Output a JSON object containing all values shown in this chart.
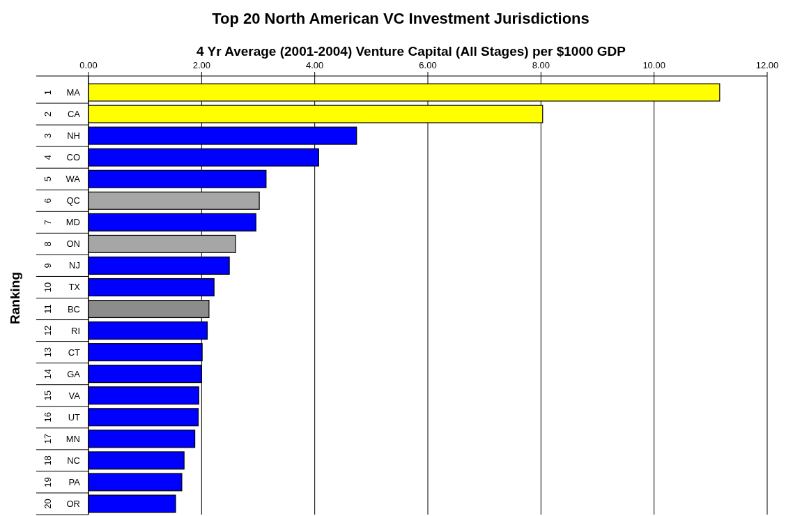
{
  "chart_data": {
    "type": "bar",
    "orientation": "horizontal",
    "title": "Top 20 North American VC Investment Jurisdictions",
    "xlabel": "4 Yr Average (2001-2004) Venture Capital (All Stages) per $1000 GDP",
    "ylabel": "Ranking",
    "categories": [
      "1 MA",
      "2 CA",
      "3 NH",
      "4 CO",
      "5 WA",
      "6 QC",
      "7 MD",
      "8 ON",
      "9 NJ",
      "10 TX",
      "11 BC",
      "12 RI",
      "13 CT",
      "14 GA",
      "15 VA",
      "16 UT",
      "17 MN",
      "18 NC",
      "19 PA",
      "20 OR"
    ],
    "values": [
      11.16,
      8.03,
      4.74,
      4.07,
      3.14,
      3.02,
      2.96,
      2.6,
      2.49,
      2.22,
      2.13,
      2.1,
      2.01,
      2.0,
      1.95,
      1.94,
      1.88,
      1.69,
      1.65,
      1.54
    ],
    "colors": [
      "#ffff00",
      "#ffff00",
      "#0000ff",
      "#0000ff",
      "#0000ff",
      "#a6a6a6",
      "#0000ff",
      "#a6a6a6",
      "#0000ff",
      "#0000ff",
      "#8c8c8c",
      "#0000ff",
      "#0000ff",
      "#0000ff",
      "#0000ff",
      "#0000ff",
      "#0000ff",
      "#0000ff",
      "#0000ff",
      "#0000ff"
    ],
    "xlim": [
      0,
      12
    ],
    "xticks": [
      {
        "value": 0,
        "label": "0.00"
      },
      {
        "value": 2,
        "label": "2.00"
      },
      {
        "value": 4,
        "label": "4.00"
      },
      {
        "value": 6,
        "label": "6.00"
      },
      {
        "value": 8,
        "label": "8.00"
      },
      {
        "value": 10,
        "label": "10.00"
      },
      {
        "value": 12,
        "label": "12.00"
      }
    ],
    "grid": "x"
  }
}
